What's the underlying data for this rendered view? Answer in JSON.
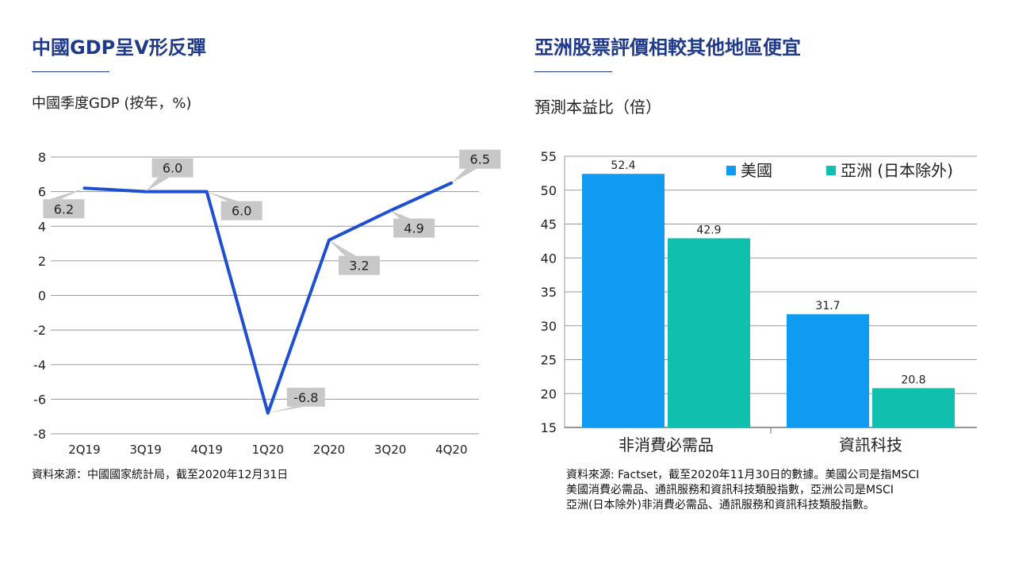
{
  "left_panel": {
    "title": "中國GDP呈V形反彈",
    "subtitle": "中國季度GDP (按年，%)",
    "source": "資料來源：中國國家統計局，截至2020年12月31日"
  },
  "right_panel": {
    "title": "亞洲股票評價相較其他地區便宜",
    "subtitle": "預測本益比（倍）",
    "source_lines": [
      "資料來源: Factset，截至2020年11月30日的數據。美國公司是指MSCI",
      "美國消費必需品、通訊服務和資訊科技類股指數，亞洲公司是MSCI",
      "亞洲(日本除外)非消費必需品、通訊服務和資訊科技類股指數。"
    ]
  },
  "colors": {
    "title": "#1f3a8a",
    "line": "#1f4fd1",
    "callout": "#c8c8c8",
    "bar_us": "#0f9bf2",
    "bar_asia": "#10bfae",
    "grid": "#9a9a9a"
  },
  "chart_data": [
    {
      "type": "line",
      "title": "中國季度GDP (按年，%)",
      "categories": [
        "2Q19",
        "3Q19",
        "4Q19",
        "1Q20",
        "2Q20",
        "3Q20",
        "4Q20"
      ],
      "x_point_labels": [
        "2Q19",
        "3Q19",
        "4Q19",
        "1Q20",
        "2Q20",
        "3Q20"
      ],
      "values": [
        6.2,
        6.0,
        6.0,
        -6.8,
        3.2,
        4.9,
        6.5
      ],
      "data_labels": [
        "6.2",
        "6.0",
        "6.0",
        "-6.8",
        "3.2",
        "4.9",
        "6.5"
      ],
      "yticks": [
        "8",
        "6",
        "4",
        "2",
        "0",
        "-2",
        "-4",
        "-6",
        "-8"
      ],
      "ylim": [
        -8,
        8
      ],
      "grid": true
    },
    {
      "type": "bar",
      "title": "預測本益比（倍）",
      "categories": [
        "非消費必需品",
        "資訊科技"
      ],
      "series": [
        {
          "name": "美國",
          "values": [
            52.4,
            31.7
          ],
          "labels": [
            "52.4",
            "31.7"
          ]
        },
        {
          "name": "亞洲 (日本除外)",
          "values": [
            42.9,
            20.8
          ],
          "labels": [
            "42.9",
            "20.8"
          ]
        }
      ],
      "yticks": [
        "55",
        "50",
        "45",
        "40",
        "35",
        "30",
        "25",
        "20",
        "15"
      ],
      "ylim": [
        15,
        55
      ],
      "legend": "top-right",
      "grid": true
    }
  ]
}
